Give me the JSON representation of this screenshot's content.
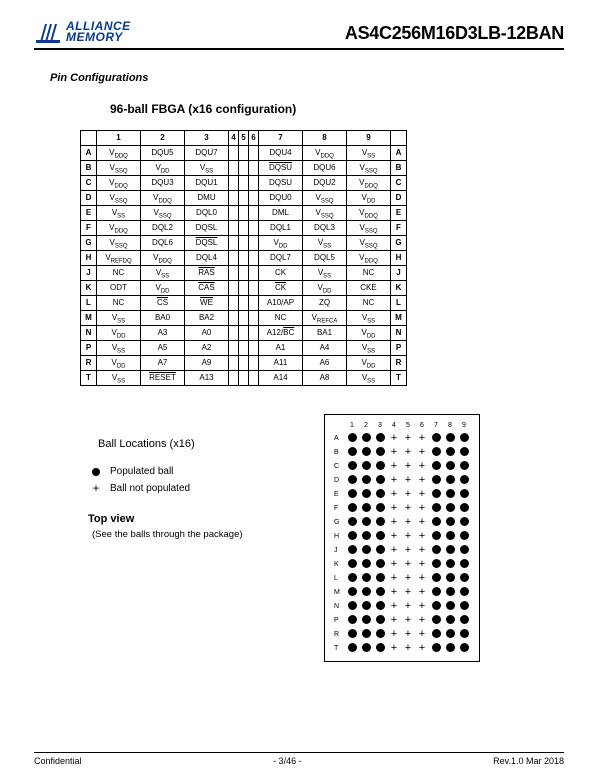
{
  "header": {
    "logo_top": "ALLIANCE",
    "logo_bottom": "MEMORY",
    "logo_color": "#0b3a8a",
    "part_number": "AS4C256M16D3LB-12BAN"
  },
  "section_title": "Pin Configurations",
  "subsection_title": "96-ball FBGA (x16 configuration)",
  "pin_table": {
    "col_headers": [
      "1",
      "2",
      "3",
      "4",
      "5",
      "6",
      "7",
      "8",
      "9"
    ],
    "row_labels": [
      "A",
      "B",
      "C",
      "D",
      "E",
      "F",
      "G",
      "H",
      "J",
      "K",
      "L",
      "M",
      "N",
      "P",
      "R",
      "T"
    ],
    "left_block_cols": [
      1,
      2,
      3
    ],
    "narrow_cols": [
      4,
      5,
      6
    ],
    "right_block_cols": [
      7,
      8,
      9
    ],
    "rows": {
      "A": {
        "left": [
          "V_DDQ",
          "DQU5",
          "DQU7"
        ],
        "right": [
          "DQU4",
          "V_DDQ",
          "V_SS"
        ]
      },
      "B": {
        "left": [
          "V_SSQ",
          "V_DD",
          "V_SS"
        ],
        "right": [
          "~DQSU",
          "DQU6",
          "V_SSQ"
        ]
      },
      "C": {
        "left": [
          "V_DDQ",
          "DQU3",
          "DQU1"
        ],
        "right": [
          "DQSU",
          "DQU2",
          "V_DDQ"
        ]
      },
      "D": {
        "left": [
          "V_SSQ",
          "V_DDQ",
          "DMU"
        ],
        "right": [
          "DQU0",
          "V_SSQ",
          "V_DD"
        ]
      },
      "E": {
        "left": [
          "V_SS",
          "V_SSQ",
          "DQL0"
        ],
        "right": [
          "DML",
          "V_SSQ",
          "V_DDQ"
        ]
      },
      "F": {
        "left": [
          "V_DDQ",
          "DQL2",
          "DQSL"
        ],
        "right": [
          "DQL1",
          "DQL3",
          "V_SSQ"
        ]
      },
      "G": {
        "left": [
          "V_SSQ",
          "DQL6",
          "~DQSL"
        ],
        "right": [
          "V_DD",
          "V_SS",
          "V_SSQ"
        ]
      },
      "H": {
        "left": [
          "V_REFDQ",
          "V_DDQ",
          "DQL4"
        ],
        "right": [
          "DQL7",
          "DQL5",
          "V_DDQ"
        ]
      },
      "J": {
        "left": [
          "NC",
          "V_SS",
          "~RAS"
        ],
        "right": [
          "CK",
          "V_SS",
          "NC"
        ]
      },
      "K": {
        "left": [
          "ODT",
          "V_DD",
          "~CAS"
        ],
        "right": [
          "~CK",
          "V_DD",
          "CKE"
        ]
      },
      "L": {
        "left": [
          "NC",
          "~CS",
          "~WE"
        ],
        "right": [
          "A10/AP",
          "ZQ",
          "NC"
        ]
      },
      "M": {
        "left": [
          "V_SS",
          "BA0",
          "BA2"
        ],
        "right": [
          "NC",
          "V_REFCA",
          "V_SS"
        ]
      },
      "N": {
        "left": [
          "V_DD",
          "A3",
          "A0"
        ],
        "right": [
          "A12/~BC",
          "BA1",
          "V_DD"
        ]
      },
      "P": {
        "left": [
          "V_SS",
          "A5",
          "A2"
        ],
        "right": [
          "A1",
          "A4",
          "V_SS"
        ]
      },
      "R": {
        "left": [
          "V_DD",
          "A7",
          "A9"
        ],
        "right": [
          "A11",
          "A6",
          "V_DD"
        ]
      },
      "T": {
        "left": [
          "V_SS",
          "~RESET",
          "A13"
        ],
        "right": [
          "A14",
          "A8",
          "V_SS"
        ]
      }
    }
  },
  "ball_locations": {
    "heading": "Ball Locations (x16)",
    "legend_populated": "Populated ball",
    "legend_not_populated": "Ball not populated",
    "top_view": "Top view",
    "subnote": "(See the balls through the package)"
  },
  "ball_grid": {
    "cols": [
      1,
      2,
      3,
      4,
      5,
      6,
      7,
      8,
      9
    ],
    "row_labels": [
      "A",
      "B",
      "C",
      "D",
      "E",
      "F",
      "G",
      "H",
      "J",
      "K",
      "L",
      "M",
      "N",
      "P",
      "R",
      "T"
    ],
    "pattern_row": [
      "pop",
      "pop",
      "pop",
      "not",
      "not",
      "not",
      "pop",
      "pop",
      "pop"
    ]
  },
  "footer": {
    "left": "Confidential",
    "center": "- 3/46 -",
    "right": "Rev.1.0   Mar  2018"
  },
  "colors": {
    "text": "#000000",
    "logo": "#0b3a8a",
    "border": "#000000",
    "background": "#ffffff"
  }
}
